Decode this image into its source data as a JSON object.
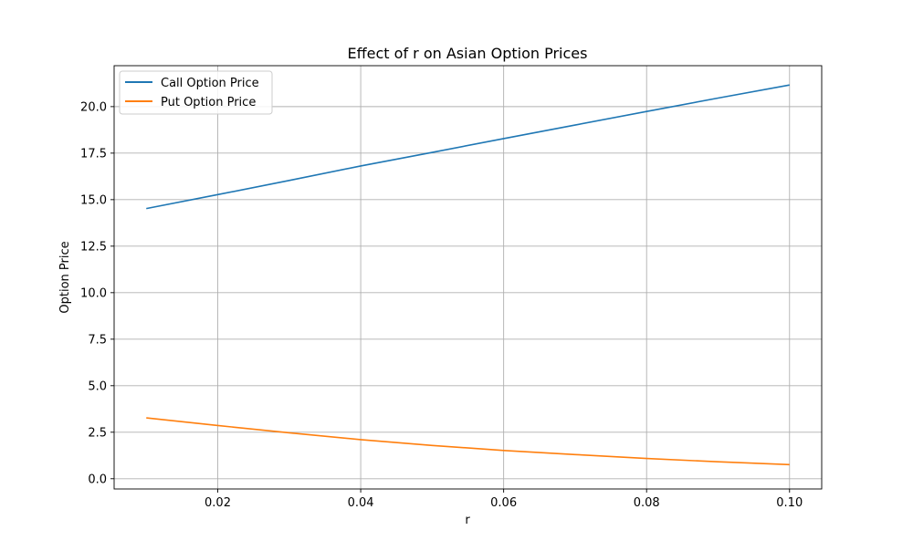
{
  "chart_data": {
    "type": "line",
    "title": "Effect of r on Asian Option Prices",
    "xlabel": "r",
    "ylabel": "Option Price",
    "xlim": [
      0.0055,
      0.1045
    ],
    "ylim": [
      -0.55,
      22.2
    ],
    "xticks": [
      0.02,
      0.04,
      0.06,
      0.08,
      0.1
    ],
    "xtick_labels": [
      "0.02",
      "0.04",
      "0.06",
      "0.08",
      "0.10"
    ],
    "yticks": [
      0.0,
      2.5,
      5.0,
      7.5,
      10.0,
      12.5,
      15.0,
      17.5,
      20.0
    ],
    "ytick_labels": [
      "0.0",
      "2.5",
      "5.0",
      "7.5",
      "10.0",
      "12.5",
      "15.0",
      "17.5",
      "20.0"
    ],
    "grid": true,
    "legend_position": "top-left",
    "x": [
      0.01,
      0.02,
      0.03,
      0.04,
      0.05,
      0.06,
      0.07,
      0.08,
      0.09,
      0.1
    ],
    "series": [
      {
        "name": "Call Option Price",
        "color": "#1f77b4",
        "values": [
          14.52,
          15.27,
          16.03,
          16.81,
          17.54,
          18.28,
          19.01,
          19.74,
          20.46,
          21.16
        ]
      },
      {
        "name": "Put Option Price",
        "color": "#ff7f0e",
        "values": [
          3.27,
          2.86,
          2.47,
          2.1,
          1.79,
          1.52,
          1.3,
          1.09,
          0.91,
          0.76
        ]
      }
    ]
  }
}
